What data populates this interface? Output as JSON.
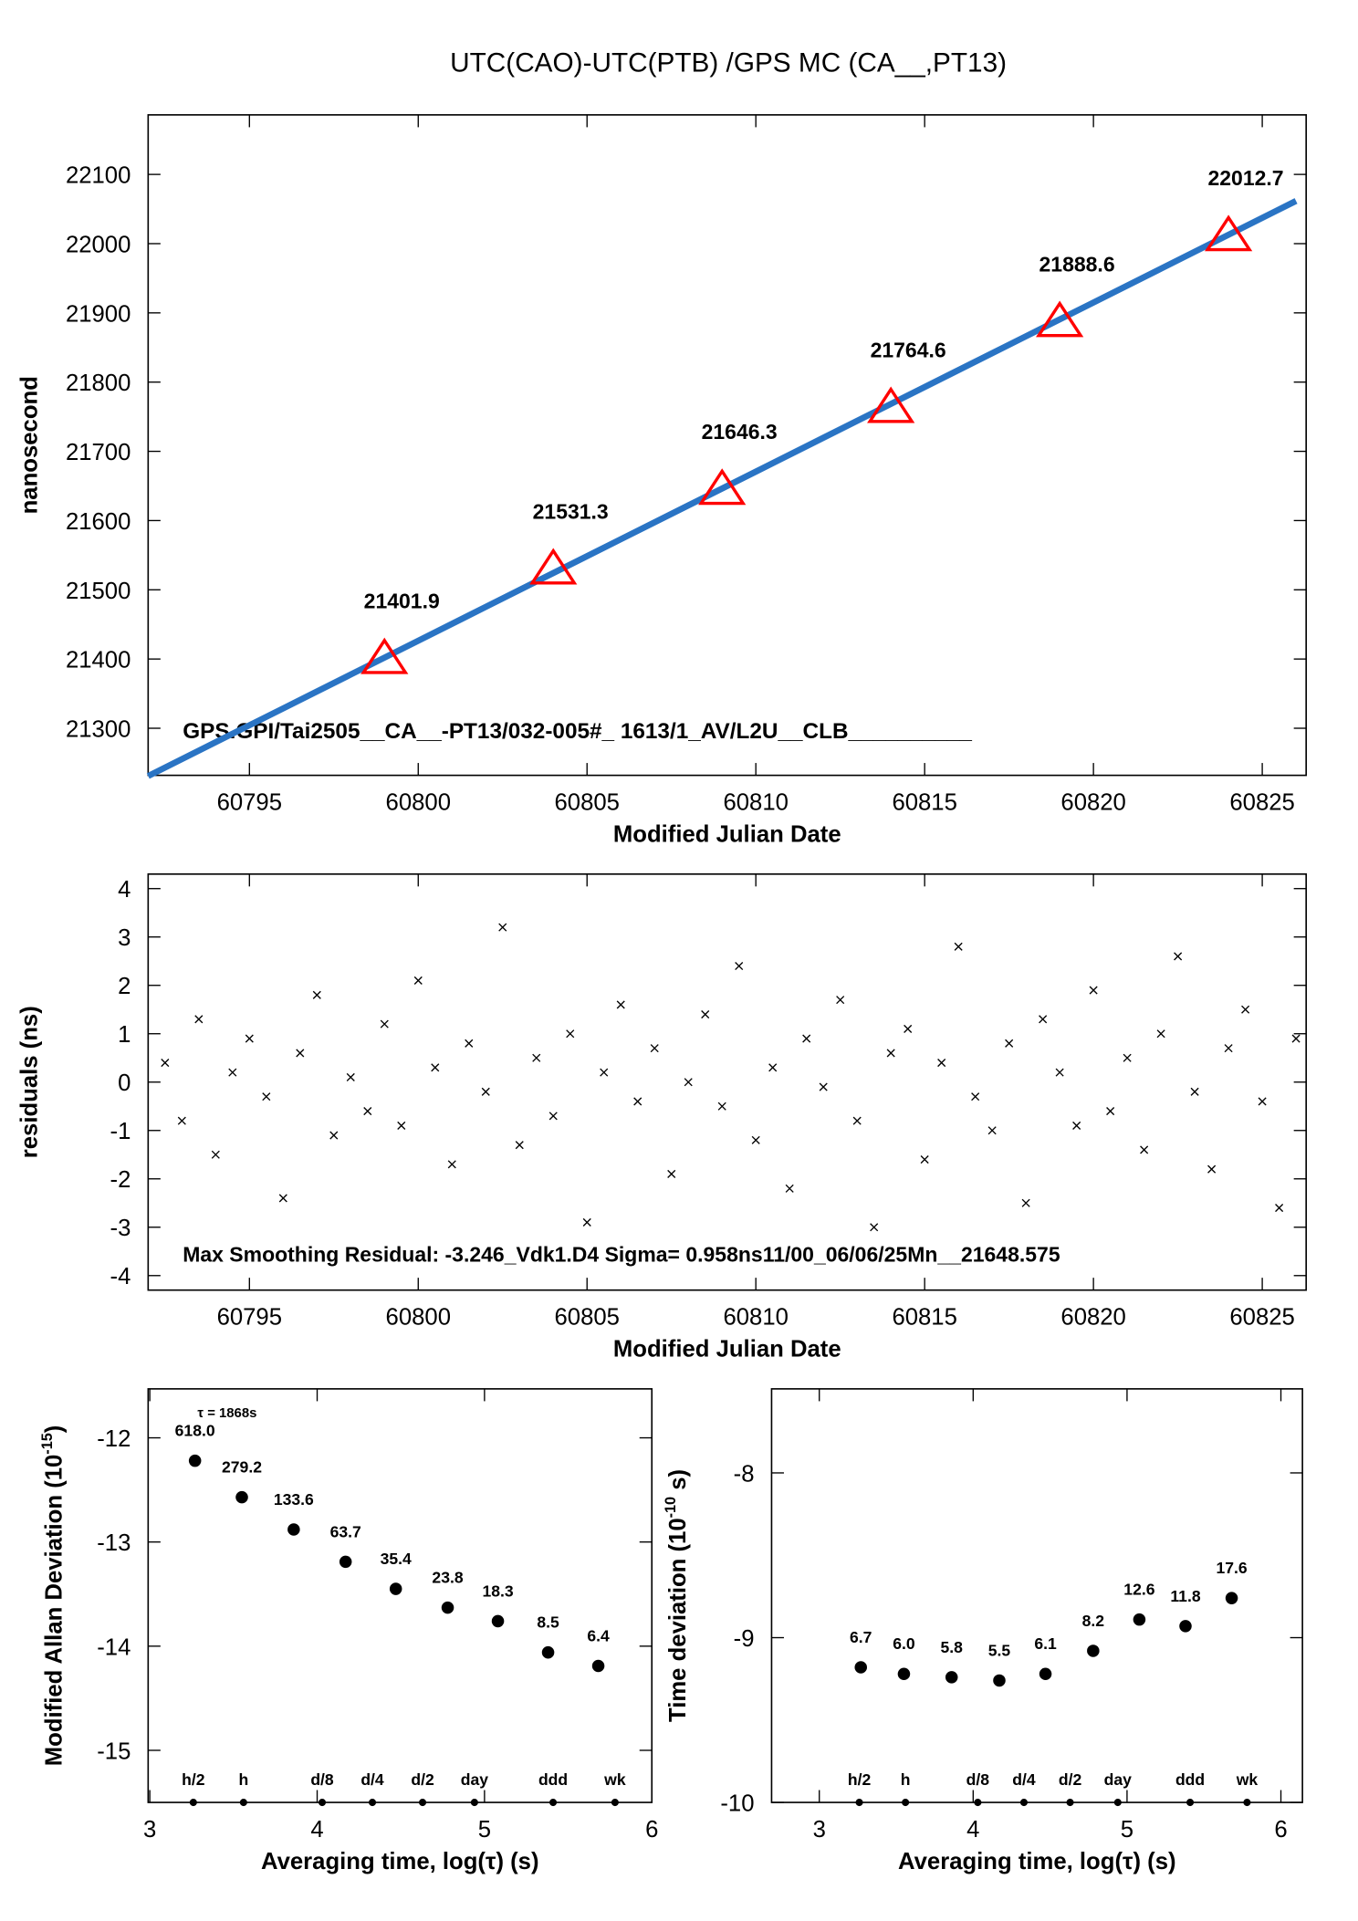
{
  "chart_data": [
    {
      "type": "line",
      "title": "UTC(CAO)-UTC(PTB)  /GPS  MC  (CA__,PT13)",
      "xlabel": "Modified Julian Date",
      "ylabel": "nanosecond",
      "xlim": [
        60792,
        60826.3
      ],
      "ylim": [
        21232,
        22186
      ],
      "xticks": [
        60795,
        60800,
        60805,
        60810,
        60815,
        60820,
        60825
      ],
      "yticks": [
        21300,
        21400,
        21500,
        21600,
        21700,
        21800,
        21900,
        22000,
        22100
      ],
      "series": [
        {
          "color": "#2a74c4",
          "x": [
            60792,
            60794,
            60796,
            60798,
            60800,
            60802,
            60804,
            60806,
            60808,
            60810,
            60812,
            60814,
            60816,
            60818,
            60820,
            60822,
            60824,
            60826
          ],
          "values": [
            21231,
            21279.9,
            21328.7,
            21377.6,
            21426.4,
            21475.3,
            21524.2,
            21573.0,
            21621.9,
            21670.7,
            21719.6,
            21768.5,
            21817.3,
            21866.2,
            21915.0,
            21963.9,
            22012.8,
            22061.7
          ]
        }
      ],
      "markers": {
        "color": "#ff0000",
        "x": [
          60799,
          60804,
          60809,
          60814,
          60819,
          60824
        ],
        "values": [
          21401.9,
          21531.3,
          21646.3,
          21764.6,
          21888.6,
          22012.7
        ]
      },
      "annotation": "GPS.GPI/Tai2505__CA__-PT13/032-005#_  1613/1_AV/L2U__CLB__________"
    },
    {
      "type": "scatter",
      "xlabel": "Modified Julian Date",
      "ylabel": "residuals (ns)",
      "marker": "x",
      "color": "#000000",
      "xlim": [
        60792,
        60826.3
      ],
      "ylim": [
        -4.3,
        4.3
      ],
      "xticks": [
        60795,
        60800,
        60805,
        60810,
        60815,
        60820,
        60825
      ],
      "yticks": [
        -4,
        -3,
        -2,
        -1,
        0,
        1,
        2,
        3,
        4
      ],
      "x": [
        60792.5,
        60793,
        60793.5,
        60794,
        60794.5,
        60795,
        60795.5,
        60796,
        60796.5,
        60797,
        60797.5,
        60798,
        60798.5,
        60799,
        60799.5,
        60800,
        60800.5,
        60801,
        60801.5,
        60802,
        60802.5,
        60803,
        60803.5,
        60804,
        60804.5,
        60805,
        60805.5,
        60806,
        60806.5,
        60807,
        60807.5,
        60808,
        60808.5,
        60809,
        60809.5,
        60810,
        60810.5,
        60811,
        60811.5,
        60812,
        60812.5,
        60813,
        60813.5,
        60814,
        60814.5,
        60815,
        60815.5,
        60816,
        60816.5,
        60817,
        60817.5,
        60818,
        60818.5,
        60819,
        60819.5,
        60820,
        60820.5,
        60821,
        60821.5,
        60822,
        60822.5,
        60823,
        60823.5,
        60824,
        60824.5,
        60825,
        60825.5,
        60826
      ],
      "values": [
        0.4,
        -0.8,
        1.3,
        -1.5,
        0.2,
        0.9,
        -0.3,
        -2.4,
        0.6,
        1.8,
        -1.1,
        0.1,
        -0.6,
        1.2,
        -0.9,
        2.1,
        0.3,
        -1.7,
        0.8,
        -0.2,
        3.2,
        -1.3,
        0.5,
        -0.7,
        1.0,
        -2.9,
        0.2,
        1.6,
        -0.4,
        0.7,
        -1.9,
        0.0,
        1.4,
        -0.5,
        2.4,
        -1.2,
        0.3,
        -2.2,
        0.9,
        -0.1,
        1.7,
        -0.8,
        -3.0,
        0.6,
        1.1,
        -1.6,
        0.4,
        2.8,
        -0.3,
        -1.0,
        0.8,
        -2.5,
        1.3,
        0.2,
        -0.9,
        1.9,
        -0.6,
        0.5,
        -1.4,
        1.0,
        2.6,
        -0.2,
        -1.8,
        0.7,
        1.5,
        -0.4,
        -2.6,
        0.9
      ],
      "annotation": "Max Smoothing Residual: -3.246_Vdk1.D4  Sigma= 0.958ns11/00_06/06/25Mn__21648.575"
    },
    {
      "type": "scatter",
      "xlabel": "Averaging time, log(τ) (s)",
      "ylabel": "Modified Allan Deviation (10",
      "ylabel_sup": "-15",
      "ylabel_end": ")",
      "marker": "dot",
      "color": "#000000",
      "label_color": "#ff0000",
      "xlim": [
        2.99,
        6.0
      ],
      "ylim": [
        -15.5,
        -11.53
      ],
      "xticks": [
        3,
        4,
        5,
        6
      ],
      "yticks": [
        -15,
        -14,
        -13,
        -12
      ],
      "x": [
        3.27,
        3.55,
        3.86,
        4.17,
        4.47,
        4.78,
        5.08,
        5.38,
        5.68
      ],
      "values": [
        -12.22,
        -12.57,
        -12.88,
        -13.19,
        -13.45,
        -13.63,
        -13.76,
        -14.06,
        -14.19
      ],
      "point_labels": [
        "618.0",
        "279.2",
        "133.6",
        "63.7",
        "35.4",
        "23.8",
        "18.3",
        "8.5",
        "6.4"
      ],
      "intervals": {
        "x": [
          3.26,
          3.56,
          4.03,
          4.33,
          4.63,
          4.94,
          5.41,
          5.78
        ],
        "labels": [
          "h/2",
          "h",
          "d/8",
          "d/4",
          "d/2",
          "day",
          "ddd",
          "wk"
        ]
      },
      "annotation": "τ = 1868s"
    },
    {
      "type": "scatter",
      "xlabel": "Averaging time, log(τ) (s)",
      "ylabel": "Time deviation (10",
      "ylabel_sup": "-10",
      "ylabel_end": " s)",
      "marker": "dot",
      "color": "#000000",
      "label_color": "#ff0000",
      "xlim": [
        2.69,
        6.14
      ],
      "ylim": [
        -10,
        -7.49
      ],
      "xticks": [
        3,
        4,
        5,
        6
      ],
      "yticks": [
        -10,
        -9,
        -8
      ],
      "x": [
        3.27,
        3.55,
        3.86,
        4.17,
        4.47,
        4.78,
        5.08,
        5.38,
        5.68
      ],
      "values": [
        -9.18,
        -9.22,
        -9.24,
        -9.26,
        -9.22,
        -9.08,
        -8.89,
        -8.93,
        -8.76
      ],
      "point_labels": [
        "6.7",
        "6.0",
        "5.8",
        "5.5",
        "6.1",
        "8.2",
        "12.6",
        "11.8",
        "17.6"
      ],
      "intervals": {
        "x": [
          3.26,
          3.56,
          4.03,
          4.33,
          4.63,
          4.94,
          5.41,
          5.78
        ],
        "labels": [
          "h/2",
          "h",
          "d/8",
          "d/4",
          "d/2",
          "day",
          "ddd",
          "wk"
        ]
      }
    }
  ]
}
